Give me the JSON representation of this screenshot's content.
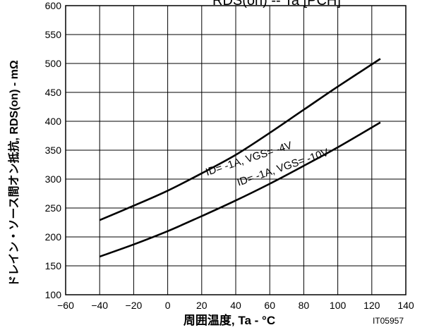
{
  "chart_data": {
    "type": "line",
    "title": "RDS(on) -- Ta [PCH]",
    "xlabel": "周囲温度, Ta - °C",
    "ylabel": "ドレイン・ソース間オン抵抗, RDS(on) - mΩ",
    "figure_id": "IT05957",
    "xlim": [
      -60,
      140
    ],
    "ylim": [
      100,
      600
    ],
    "x_ticks": [
      "-60",
      "-40",
      "-20",
      "0",
      "20",
      "40",
      "60",
      "80",
      "100",
      "120",
      "140"
    ],
    "y_ticks": [
      "100",
      "150",
      "200",
      "250",
      "300",
      "350",
      "400",
      "450",
      "500",
      "550",
      "600"
    ],
    "grid": true,
    "series": [
      {
        "name": "ID= -1A, VGS= -4V",
        "x": [
          -40,
          -20,
          0,
          20,
          40,
          60,
          80,
          100,
          125
        ],
        "y": [
          229,
          254,
          280,
          310,
          342,
          380,
          420,
          460,
          508
        ]
      },
      {
        "name": "ID= -1A, VGS= -10V",
        "x": [
          -40,
          -20,
          0,
          20,
          40,
          60,
          80,
          100,
          125
        ],
        "y": [
          166,
          187,
          210,
          236,
          263,
          292,
          323,
          355,
          398
        ]
      }
    ]
  }
}
